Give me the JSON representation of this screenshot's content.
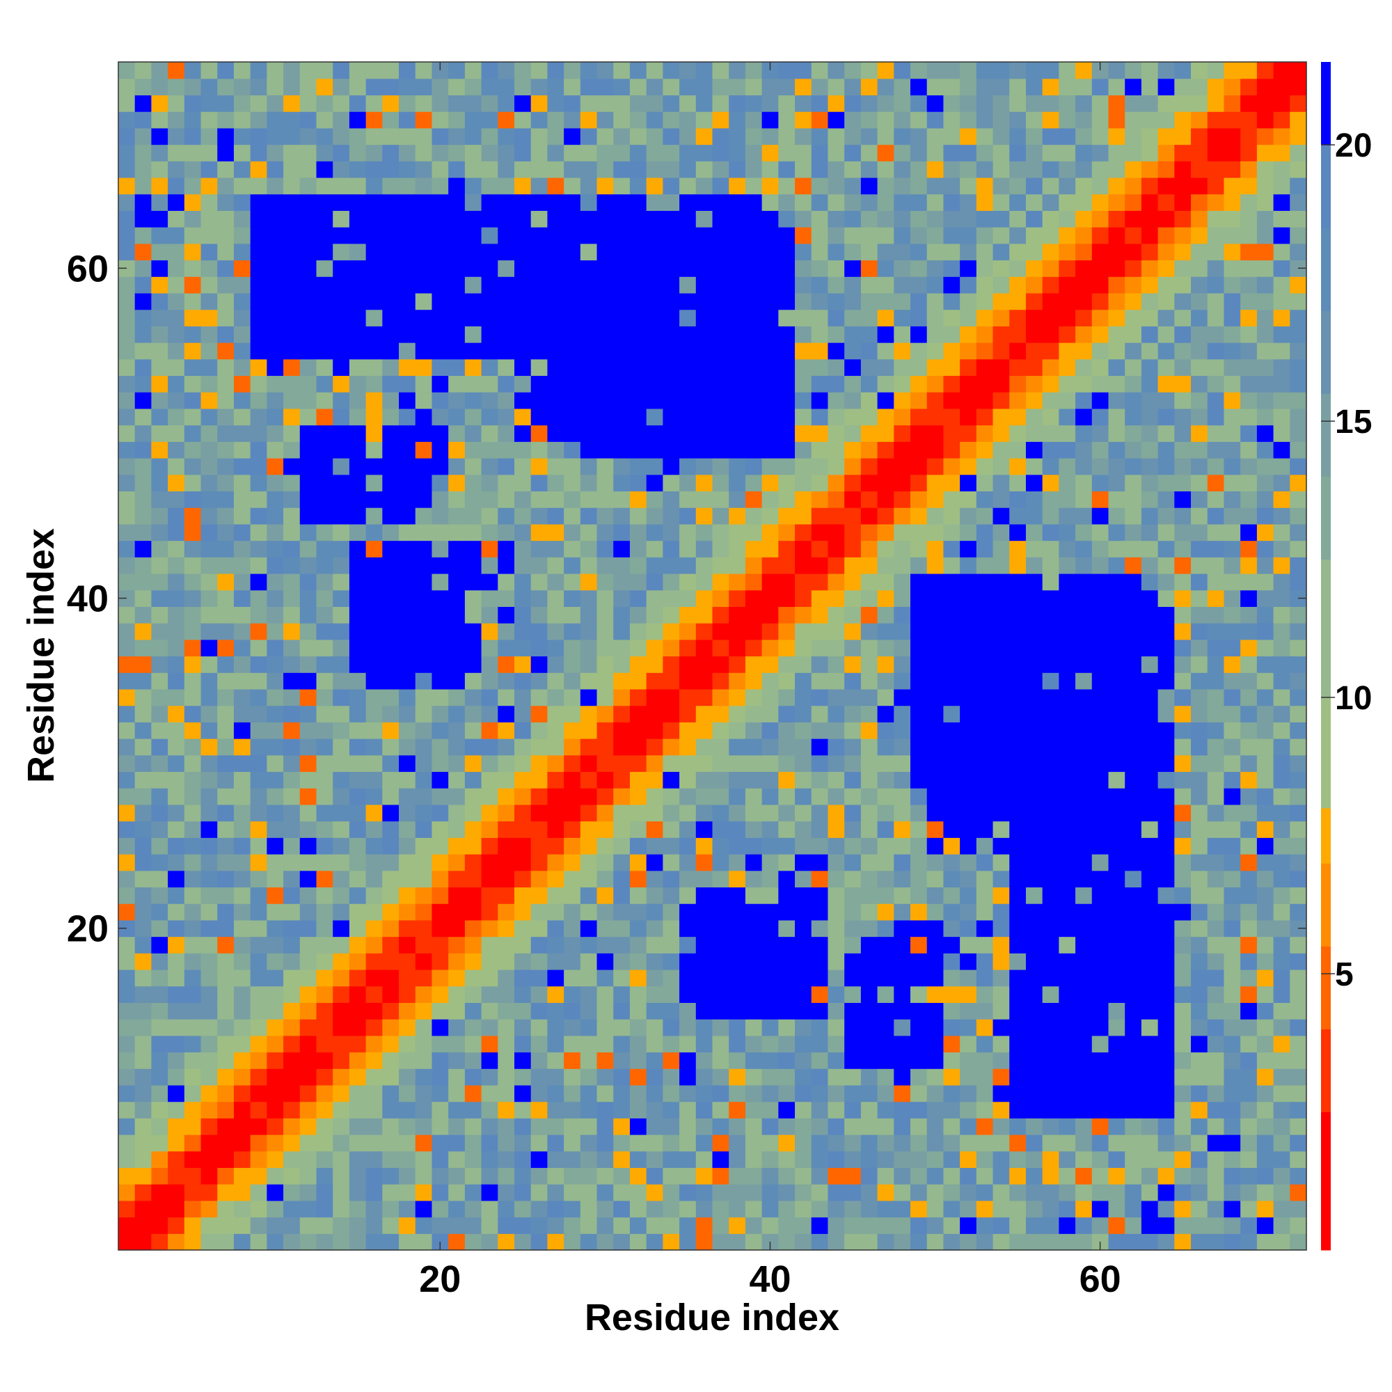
{
  "chart_data": {
    "type": "heatmap",
    "title": "",
    "xlabel": "Residue index",
    "ylabel": "Residue index",
    "n_residues": 72,
    "xlim": [
      1,
      72
    ],
    "ylim": [
      1,
      72
    ],
    "x_ticks": [
      20,
      40,
      60
    ],
    "y_ticks": [
      20,
      40,
      60
    ],
    "x_tick_labels": [
      "20",
      "40",
      "60"
    ],
    "y_tick_labels": [
      "20",
      "40",
      "60"
    ],
    "colorbar": {
      "range": [
        0,
        21.5
      ],
      "ticks": [
        5,
        10,
        15,
        20
      ],
      "tick_labels": [
        "5",
        "10",
        "15",
        "20"
      ],
      "levels": [
        {
          "min": 0,
          "max": 2.5,
          "color": "#ff0000"
        },
        {
          "min": 2.5,
          "max": 4,
          "color": "#ff3300"
        },
        {
          "min": 4,
          "max": 5.5,
          "color": "#ff6600"
        },
        {
          "min": 5.5,
          "max": 7,
          "color": "#ff8c00"
        },
        {
          "min": 7,
          "max": 8,
          "color": "#ffaa00"
        },
        {
          "min": 8,
          "max": 10,
          "color": "#9fbe84"
        },
        {
          "min": 10,
          "max": 12.5,
          "color": "#95b88e"
        },
        {
          "min": 12.5,
          "max": 14,
          "color": "#82a99a"
        },
        {
          "min": 14,
          "max": 15.5,
          "color": "#7a9fa3"
        },
        {
          "min": 15.5,
          "max": 17,
          "color": "#6892b0"
        },
        {
          "min": 17,
          "max": 18.5,
          "color": "#5e8cb8"
        },
        {
          "min": 18.5,
          "max": 20,
          "color": "#5b87bf"
        },
        {
          "min": 20,
          "max": 21.5,
          "color": "#0000ff"
        }
      ]
    },
    "value_description": "Symmetric residue-residue distance map; matrix values generated from the per-cell colors",
    "diagonal_band": [
      {
        "offset_max": 1,
        "value": 1.5
      },
      {
        "offset_max": 2,
        "value": 3.5
      },
      {
        "offset_max": 3,
        "value": 5.5
      },
      {
        "offset_max": 4,
        "value": 7.5
      }
    ],
    "blocks_far": [
      {
        "x": [
          9,
          27
        ],
        "y": [
          55,
          64
        ],
        "value": 21
      },
      {
        "x": [
          25,
          41
        ],
        "y": [
          50,
          64
        ],
        "value": 21
      },
      {
        "x": [
          16,
          22
        ],
        "y": [
          35,
          42
        ],
        "value": 21
      },
      {
        "x": [
          49,
          62
        ],
        "y": [
          29,
          41
        ],
        "value": 21
      },
      {
        "x": [
          36,
          43
        ],
        "y": [
          15,
          22
        ],
        "value": 21
      },
      {
        "x": [
          56,
          64
        ],
        "y": [
          9,
          21
        ],
        "value": 21
      },
      {
        "x": [
          45,
          50
        ],
        "y": [
          12,
          20
        ],
        "value": 21
      }
    ]
  }
}
